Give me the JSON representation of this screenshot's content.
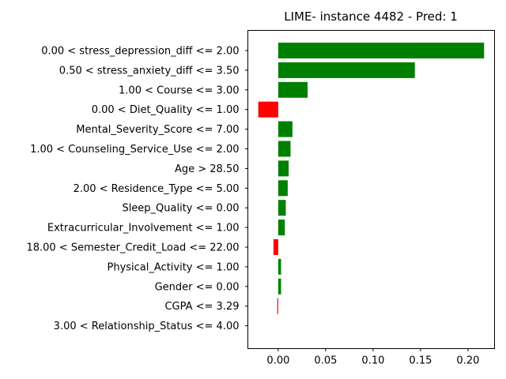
{
  "chart_data": {
    "type": "bar",
    "orientation": "horizontal",
    "title": "LIME- instance 4482 - Pred: 1",
    "xlabel": "",
    "ylabel": "",
    "xlim": [
      -0.032,
      0.228
    ],
    "xticks": [
      0.0,
      0.05,
      0.1,
      0.15,
      0.2
    ],
    "xtick_labels": [
      "0.00",
      "0.05",
      "0.10",
      "0.15",
      "0.20"
    ],
    "grid": false,
    "positive_color": "#008000",
    "negative_color": "#ff0000",
    "categories": [
      "0.00 < stress_depression_diff <= 2.00",
      "0.50 < stress_anxiety_diff <= 3.50",
      "1.00 < Course <= 3.00",
      "0.00 < Diet_Quality <= 1.00",
      "Mental_Severity_Score <= 7.00",
      "1.00 < Counseling_Service_Use <= 2.00",
      "Age > 28.50",
      "2.00 < Residence_Type <= 5.00",
      "Sleep_Quality <= 0.00",
      "Extracurricular_Involvement <= 1.00",
      "18.00 < Semester_Credit_Load <= 22.00",
      "Physical_Activity <= 1.00",
      "Gender <= 0.00",
      "CGPA <= 3.29",
      "3.00 < Relationship_Status <= 4.00"
    ],
    "values": [
      0.217,
      0.144,
      0.031,
      -0.021,
      0.015,
      0.013,
      0.011,
      0.01,
      0.008,
      0.007,
      -0.005,
      0.003,
      0.003,
      -0.001,
      0.0
    ]
  }
}
